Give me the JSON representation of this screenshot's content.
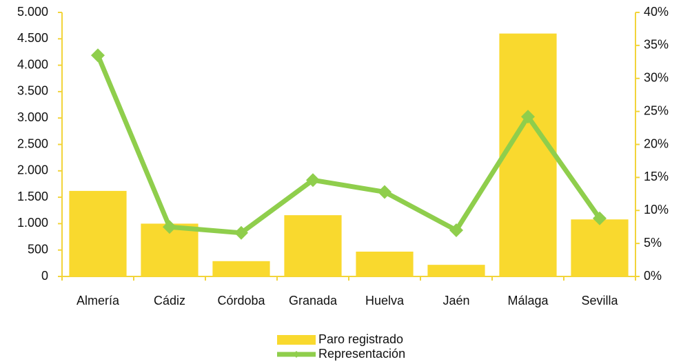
{
  "chart_data": {
    "type": "bar-line",
    "categories": [
      "Almería",
      "Cádiz",
      "Córdoba",
      "Granada",
      "Huelva",
      "Jaén",
      "Málaga",
      "Sevilla"
    ],
    "series": [
      {
        "name": "Paro registrado",
        "type": "bar",
        "color": "#f9d92e",
        "values": [
          1620,
          1000,
          290,
          1160,
          470,
          220,
          4600,
          1080
        ]
      },
      {
        "name": "Representación",
        "type": "line",
        "axis": "y2",
        "color": "#8fce4c",
        "values": [
          33.5,
          7.5,
          6.6,
          14.6,
          12.8,
          7.0,
          24.2,
          8.8
        ]
      }
    ],
    "ylim": [
      0,
      5000
    ],
    "yticks": [
      0,
      500,
      {
        "value": 1000,
        "label": "1.000"
      },
      {
        "value": 1500,
        "label": "1.500"
      },
      {
        "value": 2000,
        "label": "2.000"
      },
      {
        "value": 2500,
        "label": "2.500"
      },
      {
        "value": 3000,
        "label": "3.000"
      },
      {
        "value": 3500,
        "label": "3.500"
      },
      {
        "value": 4000,
        "label": "4.000"
      },
      {
        "value": 4500,
        "label": "4.500"
      },
      {
        "value": 5000,
        "label": "5.000"
      }
    ],
    "y2lim": [
      0,
      40
    ],
    "y2ticks": [
      {
        "value": 0,
        "label": "0%"
      },
      {
        "value": 5,
        "label": "5%"
      },
      {
        "value": 10,
        "label": "10%"
      },
      {
        "value": 15,
        "label": "15%"
      },
      {
        "value": 20,
        "label": "20%"
      },
      {
        "value": 25,
        "label": "25%"
      },
      {
        "value": 30,
        "label": "30%"
      },
      {
        "value": 35,
        "label": "35%"
      },
      {
        "value": 40,
        "label": "40%"
      }
    ],
    "axis_color": "#f2d43a",
    "grid": false
  }
}
